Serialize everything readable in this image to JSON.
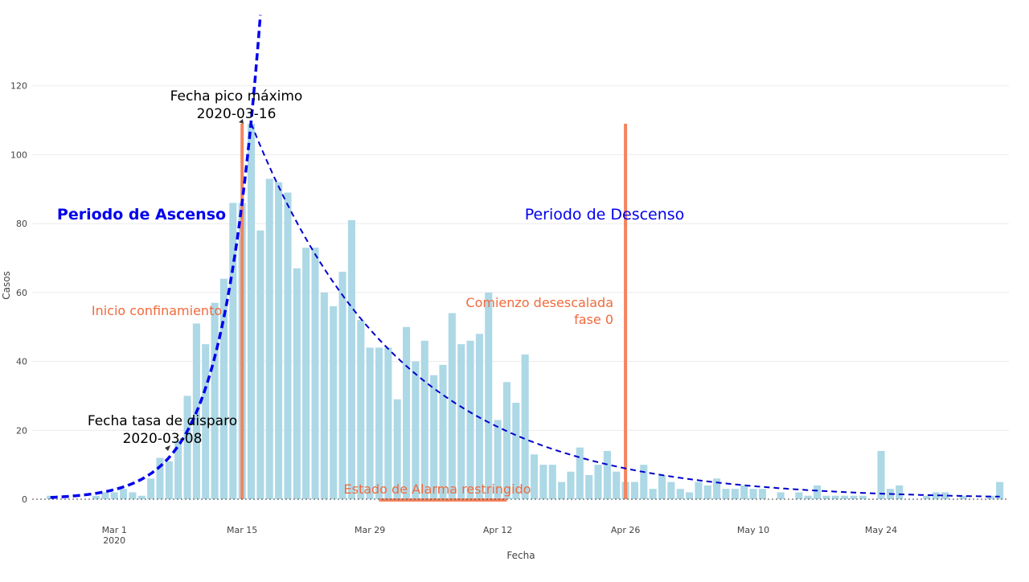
{
  "chart_data": {
    "type": "bar",
    "title": "",
    "xlabel": "Fecha",
    "ylabel": "Casos",
    "ylim": [
      0,
      126
    ],
    "yticks": [
      0,
      20,
      40,
      60,
      80,
      100,
      120
    ],
    "xlim": [
      "2020-02-21",
      "2020-06-07"
    ],
    "xticks": [
      {
        "date": "2020-03-01",
        "label": "Mar 1",
        "sublabel": "2020"
      },
      {
        "date": "2020-03-15",
        "label": "Mar 15"
      },
      {
        "date": "2020-03-29",
        "label": "Mar 29"
      },
      {
        "date": "2020-04-12",
        "label": "Apr 12"
      },
      {
        "date": "2020-04-26",
        "label": "Apr 26"
      },
      {
        "date": "2020-05-10",
        "label": "May 10"
      },
      {
        "date": "2020-05-24",
        "label": "May 24"
      }
    ],
    "grid": true,
    "bar_color": "#add8e6",
    "series_start": "2020-02-23",
    "values": [
      1,
      0,
      0,
      0,
      0,
      1,
      2,
      2,
      3,
      2,
      1,
      6,
      12,
      11,
      17,
      30,
      51,
      45,
      57,
      64,
      86,
      86,
      109,
      78,
      93,
      92,
      89,
      67,
      73,
      73,
      60,
      56,
      66,
      81,
      52,
      44,
      44,
      44,
      29,
      50,
      40,
      46,
      36,
      39,
      54,
      45,
      46,
      48,
      60,
      23,
      34,
      28,
      42,
      13,
      10,
      10,
      5,
      8,
      15,
      7,
      10,
      14,
      8,
      5,
      5,
      10,
      3,
      7,
      5,
      3,
      2,
      5,
      4,
      6,
      3,
      3,
      4,
      3,
      3,
      0,
      2,
      0,
      2,
      1,
      4,
      1,
      1,
      1,
      1,
      1,
      0,
      14,
      3,
      4,
      0,
      0,
      1,
      2,
      2,
      0,
      1,
      0,
      0,
      1,
      5
    ],
    "fits": [
      {
        "name": "ascenso",
        "color": "#0000ee",
        "anchor": "2020-03-16",
        "a": 110,
        "k": 0.245,
        "from": "2020-02-23",
        "to": "2020-03-17",
        "style": "thick-dash"
      },
      {
        "name": "descenso",
        "color": "#0000cc",
        "anchor": "2020-03-16",
        "a": 109,
        "k": -0.061,
        "from": "2020-03-16",
        "to": "2020-06-06",
        "style": "thin-dash"
      }
    ],
    "vlines": [
      {
        "date": "2020-03-15",
        "top": 109,
        "color": "#f4845f"
      },
      {
        "date": "2020-04-26",
        "top": 109,
        "color": "#f4845f"
      }
    ],
    "hlines": [
      {
        "from": "2020-03-30",
        "to": "2020-04-13",
        "y": 0,
        "color": "#f4845f"
      }
    ],
    "annotations": [
      {
        "lines": [
          "Fecha pico máximo",
          "2020-03-16"
        ],
        "color": "#000000"
      },
      {
        "lines": [
          "Fecha tasa de disparo",
          "2020-03-08"
        ],
        "color": "#000000"
      },
      {
        "lines": [
          "Periodo de Ascenso"
        ],
        "color": "#0000ee"
      },
      {
        "lines": [
          "Periodo de Descenso"
        ],
        "color": "#0000ee"
      },
      {
        "lines": [
          "Inicio confinamiento"
        ],
        "color": "#f06a3c"
      },
      {
        "lines": [
          "Comienzo desescalada",
          "fase 0"
        ],
        "color": "#f06a3c"
      },
      {
        "lines": [
          "Estado de Alarma restringido"
        ],
        "color": "#f06a3c"
      }
    ]
  }
}
